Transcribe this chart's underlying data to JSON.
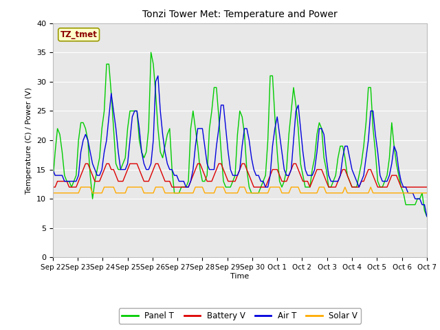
{
  "title": "Tonzi Tower Met: Temperature and Power",
  "xlabel": "Time",
  "ylabel": "Temperature (C) / Power (V)",
  "ylim": [
    0,
    40
  ],
  "yticks": [
    0,
    5,
    10,
    15,
    20,
    25,
    30,
    35,
    40
  ],
  "xtick_labels": [
    "Sep 22",
    "Sep 23",
    "Sep 24",
    "Sep 25",
    "Sep 26",
    "Sep 27",
    "Sep 28",
    "Sep 29",
    "Sep 30",
    "Oct 1",
    "Oct 2",
    "Oct 3",
    "Oct 4",
    "Oct 5",
    "Oct 6",
    "Oct 7"
  ],
  "annotation_text": "TZ_tmet",
  "annotation_color": "#8b0000",
  "annotation_bg": "#ffffcc",
  "annotation_edge": "#999900",
  "bg_color": "#e8e8e8",
  "fig_bg": "#ffffff",
  "colors": {
    "panel_t": "#00cc00",
    "battery_v": "#dd0000",
    "air_t": "#0000dd",
    "solar_v": "#ffaa00"
  },
  "legend_labels": [
    "Panel T",
    "Battery V",
    "Air T",
    "Solar V"
  ],
  "panel_t": [
    13,
    18,
    22,
    21,
    18,
    14,
    13,
    13,
    12,
    13,
    14,
    20,
    23,
    23,
    22,
    20,
    14,
    10,
    13,
    15,
    17,
    22,
    25,
    33,
    33,
    28,
    22,
    16,
    15,
    15,
    16,
    17,
    22,
    25,
    25,
    25,
    25,
    20,
    18,
    17,
    18,
    22,
    35,
    33,
    28,
    22,
    18,
    17,
    19,
    21,
    22,
    15,
    11,
    11,
    11,
    12,
    12,
    12,
    13,
    22,
    25,
    22,
    19,
    15,
    13,
    13,
    14,
    22,
    25,
    29,
    29,
    24,
    18,
    13,
    12,
    12,
    12,
    13,
    14,
    21,
    25,
    24,
    21,
    15,
    12,
    11,
    11,
    11,
    11,
    12,
    13,
    14,
    20,
    31,
    31,
    24,
    18,
    13,
    12,
    13,
    15,
    21,
    25,
    29,
    26,
    22,
    16,
    14,
    12,
    12,
    12,
    15,
    17,
    21,
    23,
    22,
    17,
    15,
    12,
    12,
    13,
    14,
    17,
    19,
    19,
    17,
    14,
    13,
    12,
    12,
    12,
    14,
    16,
    19,
    23,
    29,
    29,
    22,
    18,
    13,
    12,
    12,
    13,
    14,
    17,
    23,
    19,
    16,
    14,
    12,
    11,
    9,
    9,
    9,
    9,
    9,
    10,
    10,
    11,
    8,
    7
  ],
  "battery_v": [
    12,
    12,
    13,
    13,
    13,
    13,
    13,
    12,
    12,
    12,
    12,
    13,
    14,
    15,
    16,
    16,
    15,
    14,
    13,
    13,
    13,
    14,
    15,
    16,
    16,
    15,
    15,
    14,
    13,
    13,
    13,
    14,
    15,
    16,
    16,
    16,
    16,
    15,
    14,
    13,
    13,
    13,
    14,
    15,
    16,
    16,
    15,
    14,
    13,
    13,
    13,
    12,
    12,
    12,
    12,
    12,
    12,
    12,
    12,
    13,
    14,
    15,
    16,
    16,
    15,
    14,
    13,
    13,
    13,
    14,
    15,
    16,
    16,
    15,
    14,
    13,
    13,
    13,
    13,
    14,
    15,
    16,
    16,
    15,
    14,
    13,
    12,
    12,
    12,
    12,
    12,
    12,
    13,
    14,
    15,
    15,
    15,
    14,
    13,
    13,
    13,
    14,
    15,
    16,
    16,
    15,
    14,
    13,
    13,
    13,
    12,
    13,
    14,
    15,
    15,
    15,
    14,
    13,
    12,
    12,
    12,
    12,
    13,
    14,
    15,
    15,
    14,
    13,
    12,
    12,
    12,
    12,
    13,
    13,
    14,
    15,
    15,
    14,
    13,
    12,
    12,
    12,
    12,
    12,
    13,
    14,
    14,
    14,
    13,
    12,
    12,
    12,
    12,
    12,
    12,
    12,
    12,
    12,
    12,
    12,
    12
  ],
  "air_t": [
    15,
    14,
    14,
    14,
    14,
    13,
    13,
    13,
    13,
    13,
    13,
    14,
    18,
    20,
    21,
    20,
    18,
    16,
    15,
    14,
    14,
    15,
    18,
    20,
    24,
    28,
    25,
    22,
    18,
    15,
    15,
    15,
    16,
    20,
    24,
    25,
    25,
    22,
    18,
    16,
    15,
    15,
    16,
    20,
    30,
    31,
    25,
    21,
    18,
    16,
    15,
    15,
    14,
    14,
    13,
    13,
    13,
    12,
    12,
    13,
    15,
    19,
    22,
    22,
    22,
    19,
    16,
    15,
    15,
    15,
    19,
    22,
    26,
    26,
    22,
    18,
    15,
    14,
    14,
    14,
    15,
    19,
    22,
    22,
    20,
    17,
    15,
    14,
    14,
    13,
    13,
    12,
    12,
    14,
    19,
    22,
    24,
    21,
    18,
    15,
    14,
    14,
    15,
    20,
    25,
    26,
    22,
    18,
    15,
    14,
    14,
    14,
    15,
    18,
    22,
    22,
    21,
    17,
    14,
    13,
    13,
    13,
    13,
    14,
    17,
    19,
    19,
    17,
    15,
    14,
    13,
    12,
    13,
    14,
    17,
    20,
    25,
    25,
    21,
    18,
    14,
    13,
    13,
    13,
    14,
    16,
    19,
    18,
    15,
    13,
    12,
    12,
    11,
    11,
    11,
    10,
    10,
    10,
    9,
    9,
    7
  ],
  "solar_v": [
    11,
    11,
    11,
    11,
    11,
    11,
    11,
    11,
    11,
    11,
    11,
    11,
    12,
    12,
    12,
    12,
    12,
    11,
    11,
    11,
    11,
    11,
    12,
    12,
    12,
    12,
    12,
    11,
    11,
    11,
    11,
    11,
    12,
    12,
    12,
    12,
    12,
    12,
    12,
    11,
    11,
    11,
    11,
    11,
    12,
    12,
    12,
    12,
    11,
    11,
    11,
    11,
    11,
    11,
    11,
    11,
    11,
    11,
    11,
    11,
    11,
    12,
    12,
    12,
    12,
    11,
    11,
    11,
    11,
    11,
    12,
    12,
    12,
    12,
    11,
    11,
    11,
    11,
    11,
    11,
    12,
    12,
    12,
    11,
    11,
    11,
    11,
    11,
    11,
    11,
    11,
    11,
    11,
    12,
    12,
    12,
    12,
    12,
    11,
    11,
    11,
    11,
    12,
    12,
    12,
    12,
    11,
    11,
    11,
    11,
    11,
    11,
    11,
    11,
    12,
    12,
    12,
    11,
    11,
    11,
    11,
    11,
    11,
    11,
    11,
    12,
    11,
    11,
    11,
    11,
    11,
    11,
    11,
    11,
    11,
    11,
    12,
    11,
    11,
    11,
    11,
    11,
    11,
    11,
    11,
    11,
    11,
    11,
    11,
    11,
    11,
    11,
    11,
    11,
    11,
    11,
    11,
    11,
    11,
    11,
    11
  ]
}
